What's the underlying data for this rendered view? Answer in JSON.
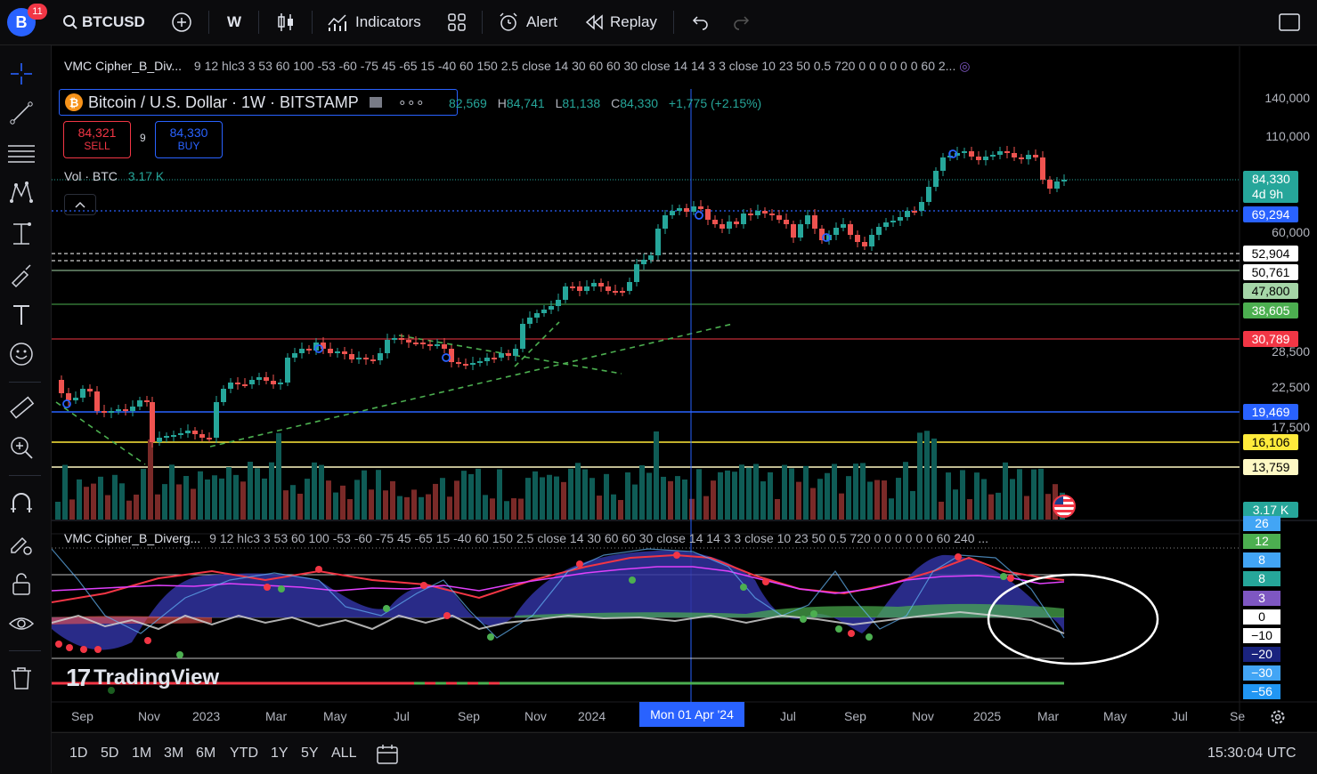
{
  "topbar": {
    "avatar_letter": "B",
    "notification_count": "11",
    "symbol": "BTCUSD",
    "interval": "W",
    "indicators_label": "Indicators",
    "alert_label": "Alert",
    "replay_label": "Replay"
  },
  "indicator_top": {
    "name": "VMC Cipher_B_Div...",
    "params": "9 12 hlc3 3 53 60 100 -53 -60 -75 45 -65 15 -40 60 150 2.5 close 14 30 60 60 30 close 14 14 3 3 close 10 23 50 0.5 720 0 0 0 0 0 0 60 2..."
  },
  "legend": {
    "title": "Bitcoin / U.S. Dollar · 1W · BITSTAMP",
    "ohlc_open": "82,569",
    "ohlc_high": "84,741",
    "ohlc_low": "81,138",
    "ohlc_close": "84,330",
    "change": "+1,775 (+2.15%)",
    "o_prefix": "O",
    "h_prefix": "H",
    "l_prefix": "L",
    "c_prefix": "C",
    "sell_price": "84,321",
    "sell_label": "SELL",
    "spread": "9",
    "buy_price": "84,330",
    "buy_label": "BUY",
    "vol_label": "Vol · BTC",
    "vol_value": "3.17 K"
  },
  "indicator_bottom": {
    "name": "VMC Cipher_B_Diverg...",
    "params": "9 12 hlc3 3 53 60 100 -53 -60 -75 45 -65 15 -40 60 150 2.5 close 14 30 60 60 30 close 14 14 3 3 close 10 23 50 0.5 720 0 0 0 0 0 0 60 240 ..."
  },
  "price_axis": {
    "labels": [
      "140,000",
      "110,000",
      "60,000",
      "28,500",
      "22,500",
      "17,500"
    ],
    "current_price": "84,330",
    "countdown": "4d 9h",
    "levels": [
      {
        "value": "69,294",
        "color": "#2962ff",
        "text_color": "#ffffff"
      },
      {
        "value": "52,904",
        "color": "#ffffff",
        "text_color": "#000000"
      },
      {
        "value": "50,761",
        "color": "#ffffff",
        "text_color": "#000000"
      },
      {
        "value": "47,800",
        "color": "#a5d6a7",
        "text_color": "#000000"
      },
      {
        "value": "38,605",
        "color": "#4caf50",
        "text_color": "#ffffff"
      },
      {
        "value": "30,789",
        "color": "#f23645",
        "text_color": "#ffffff"
      },
      {
        "value": "19,469",
        "color": "#2962ff",
        "text_color": "#ffffff"
      },
      {
        "value": "16,106",
        "color": "#ffeb3b",
        "text_color": "#000000"
      },
      {
        "value": "13,759",
        "color": "#fff9c4",
        "text_color": "#000000"
      }
    ],
    "volume_value": "3.17 K"
  },
  "oscillator_axis": {
    "labels": [
      {
        "value": "26",
        "color": "#42a5f5",
        "text_color": "#ffffff"
      },
      {
        "value": "12",
        "color": "#4caf50",
        "text_color": "#ffffff"
      },
      {
        "value": "8",
        "color": "#42a5f5",
        "text_color": "#ffffff"
      },
      {
        "value": "8",
        "color": "#26a69a",
        "text_color": "#ffffff"
      },
      {
        "value": "3",
        "color": "#7e57c2",
        "text_color": "#ffffff"
      },
      {
        "value": "0",
        "color": "#ffffff",
        "text_color": "#000000"
      },
      {
        "value": "−10",
        "color": "#ffffff",
        "text_color": "#000000"
      },
      {
        "value": "−20",
        "color": "#1a237e",
        "text_color": "#ffffff"
      },
      {
        "value": "−30",
        "color": "#42a5f5",
        "text_color": "#ffffff"
      },
      {
        "value": "−56",
        "color": "#2196f3",
        "text_color": "#ffffff"
      }
    ]
  },
  "time_axis": {
    "labels": [
      "Sep",
      "Nov",
      "2023",
      "Mar",
      "May",
      "Jul",
      "Sep",
      "Nov",
      "2024",
      "Jul",
      "Sep",
      "Nov",
      "2025",
      "Mar",
      "May",
      "Jul",
      "Se"
    ],
    "crosshair_label": "Mon 01 Apr '24"
  },
  "bottombar": {
    "ranges": [
      "1D",
      "5D",
      "1M",
      "3M",
      "6M",
      "YTD",
      "1Y",
      "5Y",
      "ALL"
    ],
    "clock": "15:30:04 UTC"
  },
  "watermark": "TradingView",
  "colors": {
    "up": "#26a69a",
    "down": "#ef5350",
    "crosshair": "#2962ff"
  }
}
